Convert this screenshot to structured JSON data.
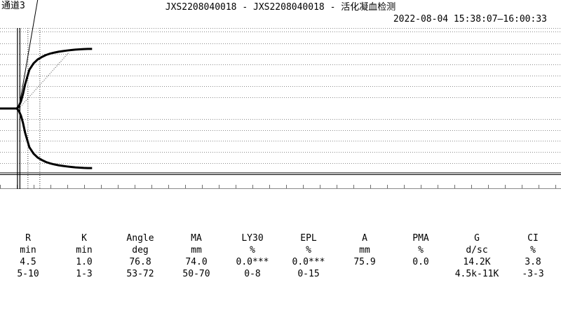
{
  "header": {
    "channel": "通道3",
    "title": "JXS2208040018 - JXS2208040018 - 活化凝血检测",
    "time_range": "2022-08-04 15:38:07—16:00:33"
  },
  "chart_data": {
    "type": "line",
    "description_kind": "thromboelastogram",
    "series": [
      {
        "key": "upper_trace",
        "x": [
          0,
          4.0,
          4.5,
          5.0,
          5.5,
          6.0,
          7.0,
          8.0,
          9.0,
          10.0,
          11.0,
          12.0,
          13.0,
          14.0,
          15.0,
          16.0,
          17.0,
          18.0,
          19.0,
          20.0,
          21.0,
          22.0
        ],
        "y": [
          0,
          0,
          3,
          9,
          18,
          30,
          48,
          56,
          61,
          64,
          66.5,
          68.2,
          69.5,
          70.5,
          71.3,
          72.0,
          72.6,
          73.1,
          73.5,
          73.8,
          74.0,
          74.0
        ]
      },
      {
        "key": "lower_trace",
        "x": [
          0,
          4.0,
          4.5,
          5.0,
          5.5,
          6.0,
          7.0,
          8.0,
          9.0,
          10.0,
          11.0,
          12.0,
          13.0,
          14.0,
          15.0,
          16.0,
          17.0,
          18.0,
          19.0,
          20.0,
          21.0,
          22.0
        ],
        "y": [
          0,
          0,
          -3,
          -9,
          -18,
          -30,
          -48,
          -56,
          -61,
          -64,
          -66.5,
          -68.2,
          -69.5,
          -70.5,
          -71.3,
          -72.0,
          -72.6,
          -73.1,
          -73.5,
          -73.8,
          -74.0,
          -74.0
        ]
      }
    ],
    "markers": {
      "R": 4.5,
      "K": 1.0,
      "R_plus_K": 5.5
    },
    "alpha_tangent": {
      "from": [
        4.5,
        0
      ],
      "to": [
        9.5,
        150
      ]
    },
    "reference_line": {
      "from": [
        4.5,
        0
      ],
      "to": [
        16.5,
        70
      ]
    },
    "ma_lower_line_y": -80,
    "xlim": [
      0,
      134
    ],
    "ylim": [
      -100,
      100
    ],
    "grid": true
  },
  "results": {
    "columns": [
      {
        "name": "R",
        "unit": "min",
        "value": "4.5",
        "range": "5-10"
      },
      {
        "name": "K",
        "unit": "min",
        "value": "1.0",
        "range": "1-3"
      },
      {
        "name": "Angle",
        "unit": "deg",
        "value": "76.8",
        "range": "53-72"
      },
      {
        "name": "MA",
        "unit": "mm",
        "value": "74.0",
        "range": "50-70"
      },
      {
        "name": "LY30",
        "unit": "%",
        "value": "0.0***",
        "range": "0-8"
      },
      {
        "name": "EPL",
        "unit": "%",
        "value": "0.0***",
        "range": "0-15"
      },
      {
        "name": "A",
        "unit": "mm",
        "value": "75.9",
        "range": ""
      },
      {
        "name": "PMA",
        "unit": "%",
        "value": "0.0",
        "range": ""
      },
      {
        "name": "G",
        "unit": "d/sc",
        "value": "14.2K",
        "range": "4.5k-11K"
      },
      {
        "name": "CI",
        "unit": "%",
        "value": "3.8",
        "range": "-3-3"
      }
    ]
  }
}
